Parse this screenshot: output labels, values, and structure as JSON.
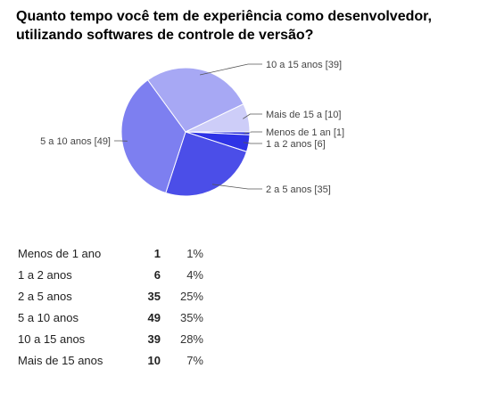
{
  "question": "Quanto tempo você tem de experiência como desenvolvedor, utilizando softwares de controle de versão?",
  "chart_data": {
    "type": "pie",
    "slices": [
      {
        "label": "Menos de 1 ano",
        "callout": "Menos de 1 an [1]",
        "count": 1,
        "percent": "1%",
        "color": "#1a1fd8"
      },
      {
        "label": "1 a 2 anos",
        "callout": "1 a 2 anos  [6]",
        "count": 6,
        "percent": "4%",
        "color": "#2e33e6"
      },
      {
        "label": "2 a 5 anos",
        "callout": "2 a 5 anos [35]",
        "count": 35,
        "percent": "25%",
        "color": "#4b4ee8"
      },
      {
        "label": "5 a 10 anos",
        "callout": "5 a 10 anos [49]",
        "count": 49,
        "percent": "35%",
        "color": "#7d7ff0"
      },
      {
        "label": "10 a 15 anos",
        "callout": "10 a 15 anos [39]",
        "count": 39,
        "percent": "28%",
        "color": "#a7a8f4"
      },
      {
        "label": "Mais de 15 anos",
        "callout": "Mais de 15 a [10]",
        "count": 10,
        "percent": "7%",
        "color": "#cdcdf8"
      }
    ]
  }
}
